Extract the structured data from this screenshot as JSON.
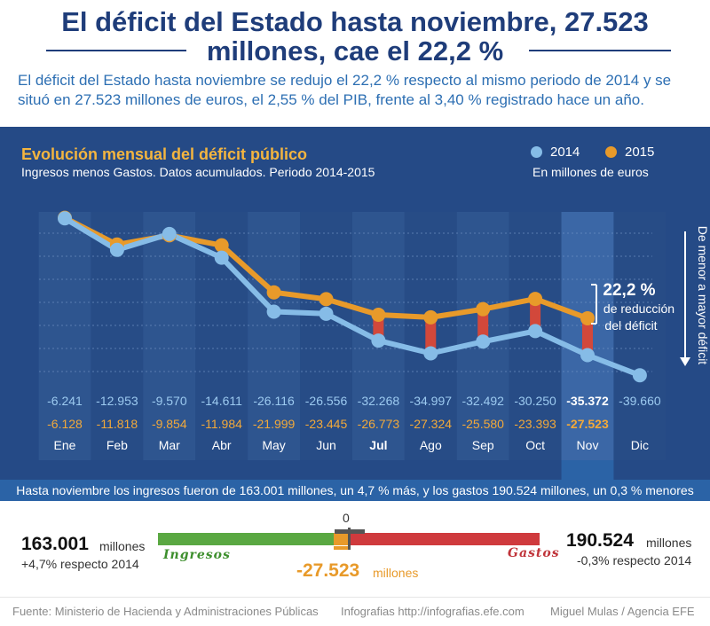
{
  "header": {
    "title_line1": "El déficit del Estado hasta noviembre, 27.523",
    "title_line2": "millones, cae el 22,2 %",
    "intro_line1": "El déficit del Estado hasta noviembre se redujo el 22,2 % respecto al mismo periodo de 2014 y se",
    "intro_line2": "situó en 27.523 millones de euros, el 2,55 % del PIB, frente al 3,40 % registrado hace un año."
  },
  "chart_data": {
    "type": "line",
    "title": "Evolución mensual del déficit público",
    "subtitle": "Ingresos menos Gastos. Datos acumulados. Periodo 2014-2015",
    "unit": "En millones de euros",
    "axis_note": "De menor a mayor déficit",
    "categories": [
      "Ene",
      "Feb",
      "Mar",
      "Abr",
      "May",
      "Jun",
      "Jul",
      "Ago",
      "Sep",
      "Oct",
      "Nov",
      "Dic"
    ],
    "series": [
      {
        "name": "2014",
        "color": "#86bce7",
        "values": [
          -6241,
          -12953,
          -9570,
          -14611,
          -26116,
          -26556,
          -32268,
          -34997,
          -32492,
          -30250,
          -35372,
          -39660
        ],
        "labels": [
          "-6.241",
          "-12.953",
          "-9.570",
          "-14.611",
          "-26.116",
          "-26.556",
          "-32.268",
          "-34.997",
          "-32.492",
          "-30.250",
          "-35.372",
          "-39.660"
        ]
      },
      {
        "name": "2015",
        "color": "#e89a2a",
        "values": [
          -6128,
          -11818,
          -9854,
          -11984,
          -21999,
          -23445,
          -26773,
          -27324,
          -25580,
          -23393,
          -27523,
          null
        ],
        "labels": [
          "-6.128",
          "-11.818",
          "-9.854",
          "-11.984",
          "-21.999",
          "-23.445",
          "-26.773",
          "-27.324",
          "-25.580",
          "-23.393",
          "-27.523",
          ""
        ]
      }
    ],
    "highlight_category": "Nov",
    "annotation": {
      "value": "22,2 %",
      "line1": "de reducción",
      "line2": "del déficit"
    }
  },
  "summary_bar": "Hasta noviembre los ingresos fueron de 163.001 millones, un 4,7 % más, y los gastos 190.524 millones, un 0,3 % menores",
  "balance": {
    "income_value": "163.001",
    "income_unit": "millones",
    "income_change": "+4,7% respecto 2014",
    "income_label": "Ingresos",
    "expense_value": "190.524",
    "expense_unit": "millones",
    "expense_change": "-0,3% respecto 2014",
    "expense_label": "Gastos",
    "zero": "0",
    "deficit_value": "-27.523",
    "deficit_unit": "millones"
  },
  "footer": {
    "source": "Fuente: Ministerio de Hacienda y Administraciones Públicas",
    "infographics": "Infografias http://infografias.efe.com",
    "credit": "Miguel Mulas / Agencia EFE"
  }
}
